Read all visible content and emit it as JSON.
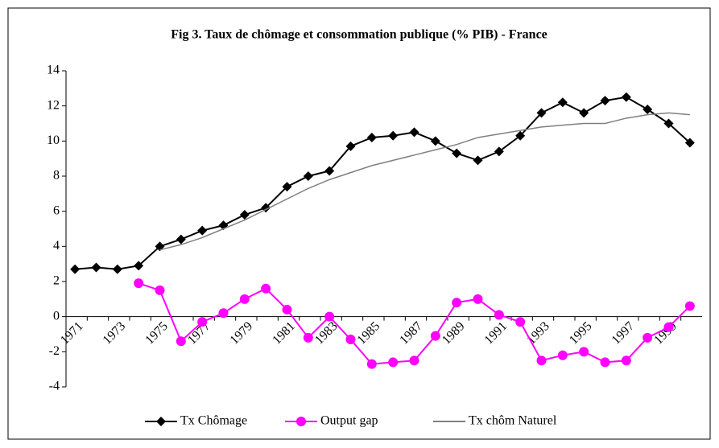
{
  "chart_data": {
    "type": "line",
    "title": "Fig 3. Taux de chômage et consommation publique (% PIB) - France",
    "categories": [
      "1971",
      null,
      "1973",
      null,
      "1975",
      null,
      "1977",
      null,
      "1979",
      null,
      "1981",
      null,
      "1983",
      null,
      "1985",
      null,
      "1987",
      null,
      "1989",
      null,
      "1991",
      null,
      "1993",
      null,
      "1995",
      null,
      "1997",
      null,
      "1999",
      null
    ],
    "series": [
      {
        "name": "Tx Chômage",
        "color": "#000000",
        "marker": "diamond",
        "values": [
          2.7,
          2.8,
          2.7,
          2.9,
          4.0,
          4.4,
          4.9,
          5.2,
          5.8,
          6.2,
          7.4,
          8.0,
          8.3,
          9.7,
          10.2,
          10.3,
          10.5,
          10.0,
          9.3,
          8.9,
          9.4,
          10.3,
          11.6,
          12.2,
          11.6,
          12.3,
          12.5,
          11.8,
          11.0,
          9.9
        ]
      },
      {
        "name": "Output gap",
        "color": "#ff00ff",
        "marker": "circle",
        "values": [
          null,
          null,
          null,
          1.9,
          1.5,
          -1.4,
          -0.3,
          0.2,
          1.0,
          1.6,
          0.4,
          -1.2,
          0.0,
          -1.3,
          -2.7,
          -2.6,
          -2.5,
          -1.1,
          0.8,
          1.0,
          0.1,
          -0.3,
          -2.5,
          -2.2,
          -2.0,
          -2.6,
          -2.5,
          -1.2,
          -0.6,
          0.6
        ]
      },
      {
        "name": "Tx chôm Naturel",
        "color": "#808080",
        "marker": "none",
        "values": [
          null,
          null,
          null,
          null,
          3.8,
          4.1,
          4.5,
          5.0,
          5.5,
          6.1,
          6.7,
          7.3,
          7.8,
          8.2,
          8.6,
          8.9,
          9.2,
          9.5,
          9.8,
          10.2,
          10.4,
          10.6,
          10.8,
          10.9,
          11.0,
          11.0,
          11.3,
          11.5,
          11.6,
          11.5
        ]
      }
    ],
    "ylim": [
      -4,
      14
    ],
    "yticks": [
      -4,
      -2,
      0,
      2,
      4,
      6,
      8,
      10,
      12,
      14
    ],
    "grid": false,
    "legend": "bottom"
  }
}
